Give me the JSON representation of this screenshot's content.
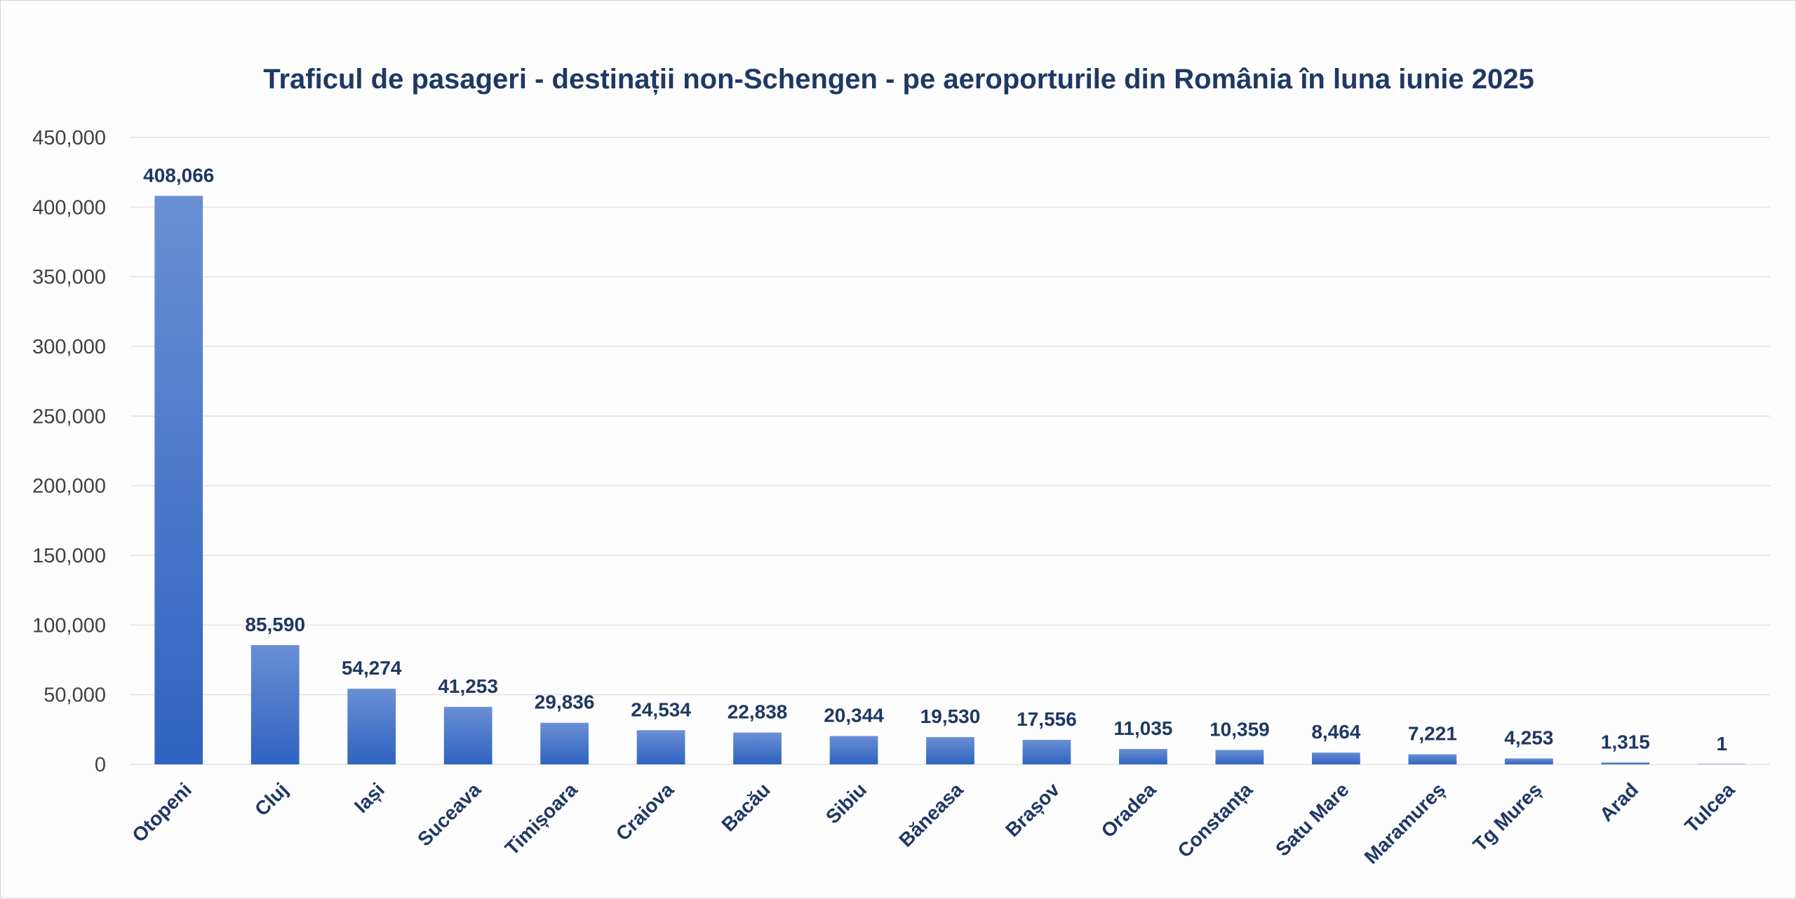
{
  "chart_data": {
    "type": "bar",
    "title": "Traficul de pasageri - destinații non-Schengen - pe aeroporturile din România în luna iunie 2025",
    "categories": [
      "Otopeni",
      "Cluj",
      "Iași",
      "Suceava",
      "Timișoara",
      "Craiova",
      "Bacău",
      "Sibiu",
      "Băneasa",
      "Brașov",
      "Oradea",
      "Constanța",
      "Satu Mare",
      "Maramureș",
      "Tg Mureș",
      "Arad",
      "Tulcea"
    ],
    "values": [
      408066,
      85590,
      54274,
      41253,
      29836,
      24534,
      22838,
      20344,
      19530,
      17556,
      11035,
      10359,
      8464,
      7221,
      4253,
      1315,
      1
    ],
    "value_labels": [
      "408,066",
      "85,590",
      "54,274",
      "41,253",
      "29,836",
      "24,534",
      "22,838",
      "20,344",
      "19,530",
      "17,556",
      "11,035",
      "10,359",
      "8,464",
      "7,221",
      "4,253",
      "1,315",
      "1"
    ],
    "ylim": [
      0,
      450000
    ],
    "yticks": [
      0,
      50000,
      100000,
      150000,
      200000,
      250000,
      300000,
      350000,
      400000,
      450000
    ],
    "ytick_labels": [
      "0",
      "50,000",
      "100,000",
      "150,000",
      "200,000",
      "250,000",
      "300,000",
      "350,000",
      "400,000",
      "450,000"
    ],
    "xlabel": "",
    "ylabel": "",
    "grid": "horizontal",
    "legend": "none",
    "bar_gradient": [
      "#6a8fd4",
      "#2f63c0"
    ],
    "label_color": "#1f3864"
  }
}
